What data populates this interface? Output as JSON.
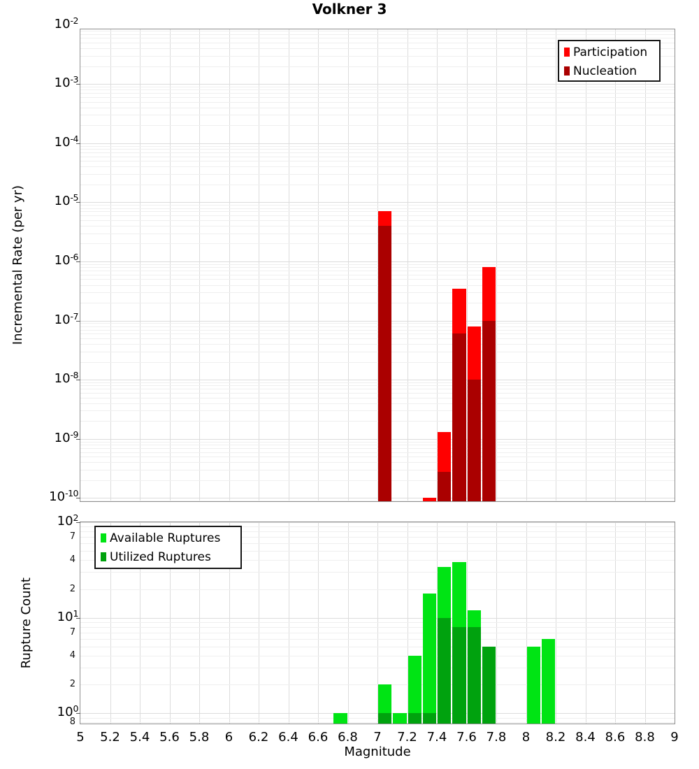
{
  "title": "Volkner 3",
  "xlabel": "Magnitude",
  "colors": {
    "participation": "#ff0000",
    "nucleation": "#aa0000",
    "available": "#00e414",
    "utilized": "#00a20e",
    "grid_major": "#dcdcdc",
    "grid_minor": "#efefef",
    "frame": "#8e8e8e"
  },
  "x_axis": {
    "min": 5,
    "max": 9,
    "tick_step": 0.2,
    "tick_labels": [
      "5",
      "5.2",
      "5.4",
      "5.6",
      "5.8",
      "6",
      "6.2",
      "6.4",
      "6.6",
      "6.8",
      "7",
      "7.2",
      "7.4",
      "7.6",
      "7.8",
      "8",
      "8.2",
      "8.4",
      "8.6",
      "8.8",
      "9"
    ]
  },
  "chart_data": [
    {
      "id": "incremental-rate",
      "type": "bar",
      "y_scale": "log",
      "ylabel": "Incremental Rate (per yr)",
      "ylim": [
        1e-10,
        0.01
      ],
      "y_major_tick_exponents": [
        -2,
        -3,
        -4,
        -5,
        -6,
        -7,
        -8,
        -9,
        -10
      ],
      "y_minor_tick_labels": [],
      "bin_width": 0.1,
      "series": [
        {
          "name": "Participation",
          "color_key": "participation",
          "bins": [
            7.0,
            7.3,
            7.4,
            7.5,
            7.6,
            7.7
          ],
          "values": [
            7e-06,
            1e-10,
            1.3e-09,
            3.5e-07,
            8e-08,
            8e-07
          ]
        },
        {
          "name": "Nucleation",
          "color_key": "nucleation",
          "bins": [
            7.0,
            7.4,
            7.5,
            7.6,
            7.7
          ],
          "values": [
            4e-06,
            2.8e-10,
            6e-08,
            1e-08,
            1e-07
          ]
        }
      ],
      "legend": {
        "position": "top-right",
        "entries": [
          {
            "label": "Participation",
            "color_key": "participation"
          },
          {
            "label": "Nucleation",
            "color_key": "nucleation"
          }
        ]
      }
    },
    {
      "id": "rupture-count",
      "type": "bar",
      "y_scale": "log",
      "ylabel": "Rupture Count",
      "ylim": [
        0.8,
        100
      ],
      "y_major_tick_exponents": [
        2,
        1,
        0
      ],
      "y_minor_tick_labels": [
        {
          "label": "7",
          "value": 70
        },
        {
          "label": "4",
          "value": 40
        },
        {
          "label": "2",
          "value": 20
        },
        {
          "label": "7",
          "value": 7
        },
        {
          "label": "4",
          "value": 4
        },
        {
          "label": "2",
          "value": 2
        },
        {
          "label": "8",
          "value": 0.8
        }
      ],
      "bin_width": 0.1,
      "series": [
        {
          "name": "Available Ruptures",
          "color_key": "available",
          "bins": [
            6.7,
            7.0,
            7.1,
            7.2,
            7.3,
            7.4,
            7.5,
            7.6,
            7.7,
            8.0,
            8.1
          ],
          "values": [
            1,
            2,
            1,
            4,
            18,
            34,
            38,
            12,
            5,
            5,
            6
          ]
        },
        {
          "name": "Utilized Ruptures",
          "color_key": "utilized",
          "bins": [
            7.0,
            7.2,
            7.3,
            7.4,
            7.5,
            7.6,
            7.7
          ],
          "values": [
            1,
            1,
            1,
            10,
            8,
            8,
            5
          ]
        }
      ],
      "legend": {
        "position": "top-left",
        "entries": [
          {
            "label": "Available Ruptures",
            "color_key": "available"
          },
          {
            "label": "Utilized Ruptures",
            "color_key": "utilized"
          }
        ]
      }
    }
  ]
}
